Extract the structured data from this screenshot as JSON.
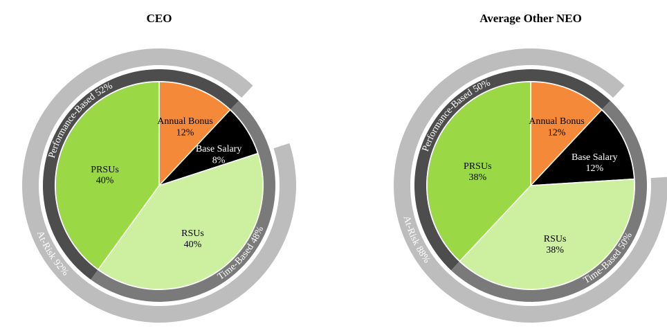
{
  "chart_data": [
    {
      "type": "pie",
      "title": "CEO",
      "categories": [
        "Annual Bonus",
        "Base Salary",
        "RSUs",
        "PRSUs"
      ],
      "values": [
        12,
        8,
        40,
        40
      ],
      "value_labels": [
        "12%",
        "8%",
        "40%",
        "40%"
      ],
      "colors": [
        "#f5893a",
        "#000000",
        "#cdf0a0",
        "#9ad945"
      ],
      "inner_ring": {
        "categories": [
          "Performance-Based",
          "Time-Based"
        ],
        "values": [
          52,
          48
        ],
        "value_labels": [
          "52%",
          "48%"
        ],
        "colors": [
          "#4d4d4d",
          "#7a7a7a"
        ]
      },
      "outer_ring": {
        "categories": [
          "At-Risk"
        ],
        "values": [
          92
        ],
        "value_labels": [
          "92%"
        ],
        "colors": [
          "#bdbdbd"
        ]
      }
    },
    {
      "type": "pie",
      "title": "Average Other NEO",
      "categories": [
        "Annual Bonus",
        "Base Salary",
        "RSUs",
        "PRSUs"
      ],
      "values": [
        12,
        12,
        38,
        38
      ],
      "value_labels": [
        "12%",
        "12%",
        "38%",
        "38%"
      ],
      "colors": [
        "#f5893a",
        "#000000",
        "#cdf0a0",
        "#9ad945"
      ],
      "inner_ring": {
        "categories": [
          "Performance-Based",
          "Time-Based"
        ],
        "values": [
          50,
          50
        ],
        "value_labels": [
          "50%",
          "50%"
        ],
        "colors": [
          "#4d4d4d",
          "#7a7a7a"
        ]
      },
      "outer_ring": {
        "categories": [
          "At-Risk"
        ],
        "values": [
          88
        ],
        "value_labels": [
          "88%"
        ],
        "colors": [
          "#bdbdbd"
        ]
      }
    }
  ]
}
